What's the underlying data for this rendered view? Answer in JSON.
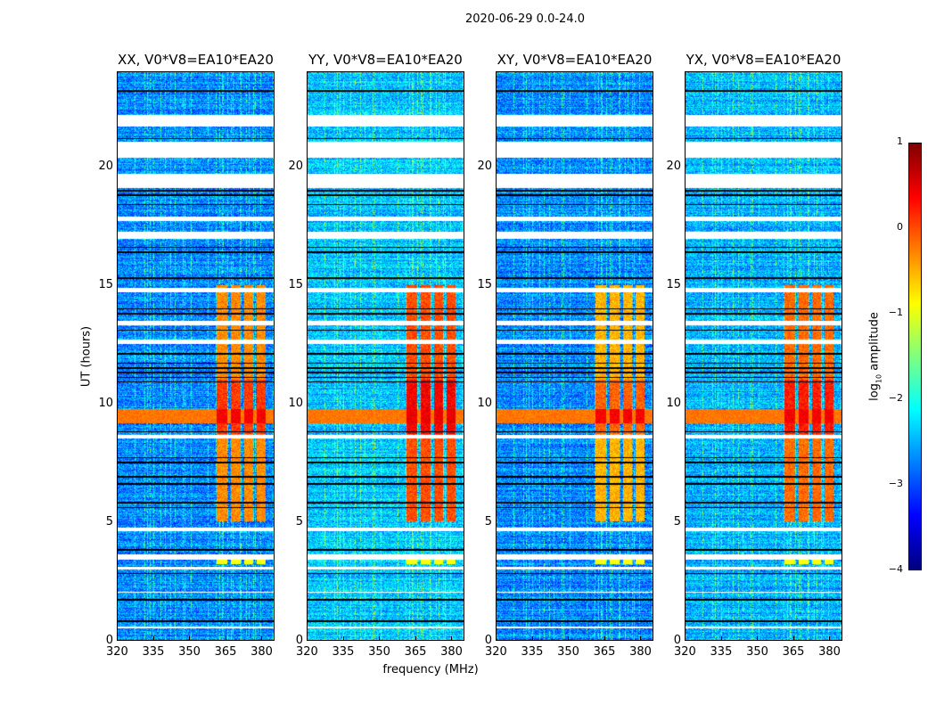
{
  "chart_data": {
    "type": "heatmap",
    "title": "2020-06-29 0.0-24.0",
    "xlabel": "frequency (MHz)",
    "ylabel": "UT (hours)",
    "xlim": [
      320,
      385.5
    ],
    "ylim": [
      0,
      24
    ],
    "xticks": [
      "320",
      "335",
      "350",
      "365",
      "380"
    ],
    "xtick_values": [
      320,
      335,
      350,
      365,
      380
    ],
    "yticks": [
      "0",
      "5",
      "10",
      "15",
      "20"
    ],
    "ytick_values": [
      0,
      5,
      10,
      15,
      20
    ],
    "colorbar": {
      "label_main": "log",
      "label_sub": "10",
      "label_rest": " amplitude",
      "colormap": "jet",
      "zlim": [
        -4,
        1
      ],
      "ticks": [
        "1",
        "0",
        "−1",
        "−2",
        "−3",
        "−4"
      ],
      "tick_values": [
        1,
        0,
        -1,
        -2,
        -3,
        -4
      ]
    },
    "panels": [
      {
        "title": "XX, V0*V8=EA10*EA20",
        "rfi_level": 0.0,
        "background": -2.7
      },
      {
        "title": "YY, V0*V8=EA10*EA20",
        "rfi_level": 0.3,
        "background": -2.4
      },
      {
        "title": "XY, V0*V8=EA10*EA20",
        "rfi_level": -0.2,
        "background": -2.7
      },
      {
        "title": "YX, V0*V8=EA10*EA20",
        "rfi_level": 0.15,
        "background": -2.5
      }
    ],
    "flagged_time_ranges_hours": [
      [
        21.7,
        22.2
      ],
      [
        20.4,
        21.05
      ],
      [
        19.1,
        19.7
      ],
      [
        17.7,
        17.9
      ],
      [
        16.96,
        17.26
      ],
      [
        14.7,
        14.9
      ],
      [
        13.3,
        13.5
      ],
      [
        12.5,
        12.7
      ],
      [
        8.5,
        8.67
      ],
      [
        4.6,
        4.75
      ],
      [
        3.4,
        3.6
      ],
      [
        2.96,
        3.08
      ],
      [
        2.0,
        2.05
      ],
      [
        0.5,
        0.55
      ]
    ],
    "dropout_times_hours": [
      23.2,
      21.2,
      19.0,
      18.8,
      18.4,
      16.6,
      16.4,
      15.3,
      14.0,
      13.8,
      13.1,
      12.1,
      11.7,
      11.5,
      11.3,
      11.1,
      10.9,
      8.8,
      7.7,
      7.5,
      6.9,
      6.6,
      5.8,
      5.6,
      3.8,
      2.8,
      1.7,
      0.8
    ],
    "rfi_bands_mhz": [
      [
        361.5,
        366
      ],
      [
        367.5,
        371.5
      ],
      [
        373,
        377
      ],
      [
        378.5,
        382
      ]
    ],
    "rfi_time_range_hours": [
      5.0,
      15.0
    ],
    "rfi_amplitude": -0.3,
    "bright_event": {
      "hours": [
        9.15,
        9.75
      ],
      "amplitude": 0.3
    }
  }
}
